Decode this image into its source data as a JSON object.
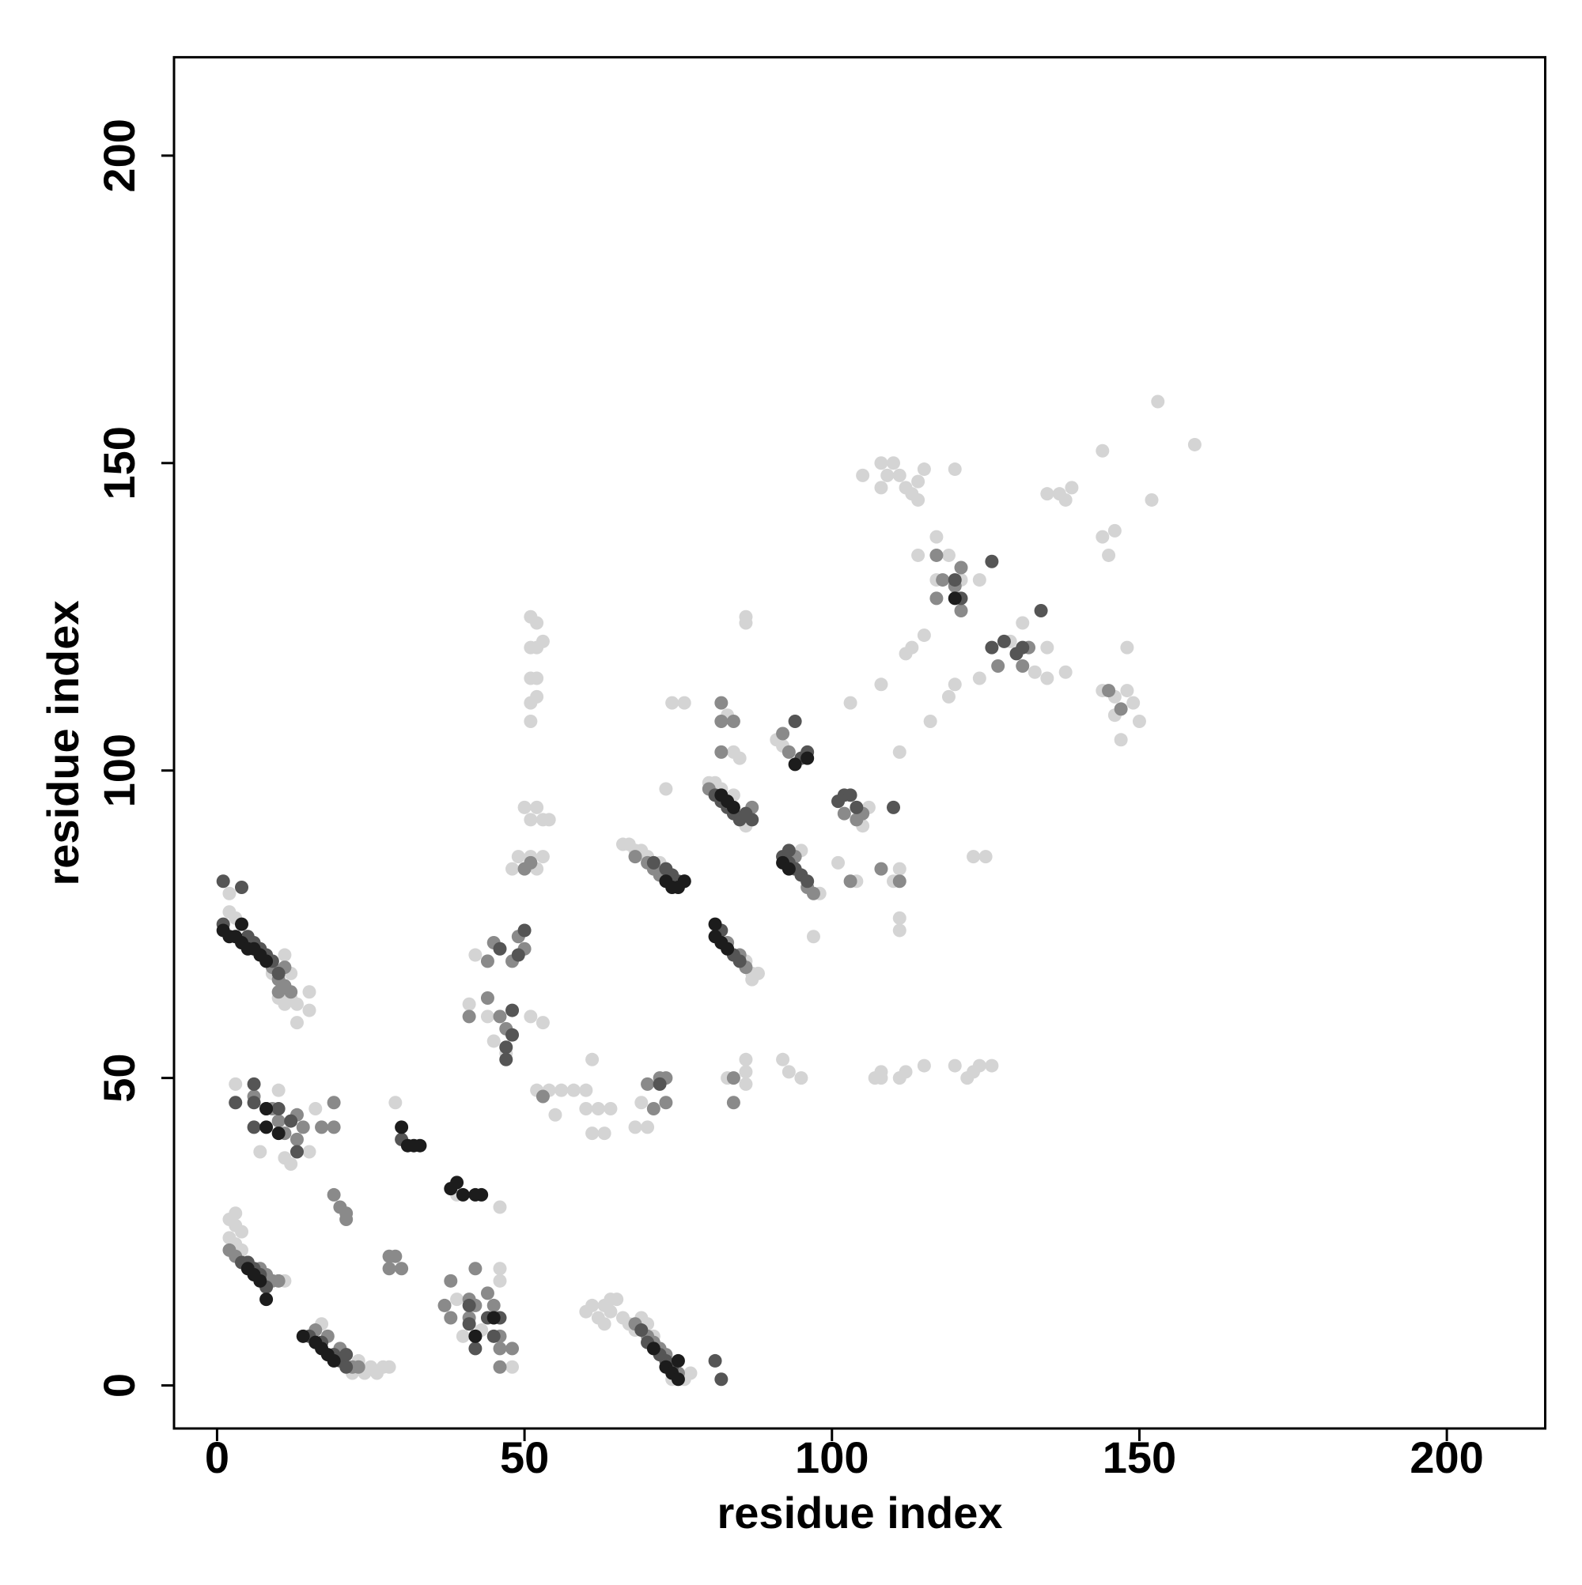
{
  "chart_data": {
    "type": "scatter",
    "x_label": "residue index",
    "y_label": "residue index",
    "xlim": [
      -7,
      216
    ],
    "ylim": [
      -7,
      216
    ],
    "xticks": [
      0,
      50,
      100,
      150,
      200
    ],
    "yticks": [
      0,
      50,
      100,
      150,
      200
    ],
    "grid": false,
    "series": [
      {
        "color": "#d4d4d4",
        "x": [
          2,
          3,
          9,
          11,
          12,
          12,
          13,
          13,
          15,
          15,
          11,
          10,
          2,
          3,
          3,
          2,
          2,
          3,
          4,
          4,
          11,
          17,
          22,
          24,
          25,
          26,
          27,
          28,
          23,
          60,
          61,
          62,
          63,
          64,
          64,
          65,
          66,
          67,
          68,
          69,
          70,
          71,
          76,
          77,
          74,
          63,
          39,
          40,
          43,
          46,
          46,
          48,
          46,
          39,
          29,
          3,
          3,
          7,
          11,
          12,
          15,
          16,
          10,
          41,
          42,
          44,
          45,
          47,
          51,
          53,
          48,
          51,
          52,
          51,
          52,
          51,
          52,
          51,
          52,
          51,
          53,
          50,
          52,
          51,
          53,
          49,
          51,
          53,
          52,
          54,
          52,
          54,
          56,
          58,
          60,
          61,
          60,
          62,
          63,
          61,
          64,
          55,
          68,
          70,
          69,
          66,
          67,
          68,
          69,
          70,
          72,
          73,
          74,
          76,
          80,
          81,
          82,
          84,
          86,
          86,
          87,
          88,
          87,
          83,
          84,
          85,
          86,
          86,
          83,
          86,
          86,
          86,
          95,
          98,
          97,
          91,
          92,
          105,
          106,
          103,
          101,
          104,
          110,
          111,
          111,
          111,
          92,
          93,
          95,
          108,
          108,
          111,
          112,
          115,
          120,
          123,
          124,
          126,
          122,
          107,
          123,
          125,
          111,
          108,
          105,
          108,
          109,
          110,
          111,
          112,
          113,
          114,
          115,
          114,
          108,
          120,
          114,
          117,
          117,
          119,
          121,
          124,
          112,
          113,
          115,
          116,
          119,
          120,
          124,
          129,
          131,
          133,
          135,
          135,
          138,
          135,
          137,
          138,
          139,
          144,
          144,
          145,
          146,
          148,
          144,
          146,
          148,
          149,
          150,
          146,
          147,
          152,
          153,
          159
        ],
        "values": [
          77,
          76,
          67,
          70,
          67,
          63,
          62,
          59,
          61,
          64,
          62,
          63,
          80,
          28,
          26,
          27,
          24,
          23,
          22,
          25,
          17,
          10,
          2,
          2,
          3,
          2,
          3,
          3,
          4,
          12,
          13,
          11,
          10,
          12,
          14,
          14,
          11,
          10,
          9,
          11,
          10,
          8,
          1,
          2,
          1,
          13,
          14,
          8,
          9,
          17,
          19,
          3,
          29,
          31,
          46,
          49,
          46,
          38,
          37,
          36,
          38,
          45,
          48,
          62,
          70,
          60,
          56,
          54,
          60,
          59,
          84,
          125,
          124,
          120,
          120,
          115,
          115,
          111,
          112,
          108,
          121,
          94,
          94,
          92,
          92,
          86,
          86,
          86,
          84,
          92,
          48,
          48,
          48,
          48,
          48,
          53,
          45,
          45,
          41,
          41,
          45,
          44,
          42,
          42,
          46,
          88,
          88,
          87,
          87,
          86,
          85,
          97,
          111,
          111,
          98,
          98,
          97,
          96,
          91,
          69,
          67,
          67,
          66,
          109,
          103,
          102,
          125,
          124,
          50,
          53,
          51,
          49,
          87,
          80,
          73,
          105,
          104,
          91,
          94,
          111,
          85,
          82,
          82,
          84,
          76,
          74,
          53,
          51,
          50,
          51,
          50,
          50,
          51,
          52,
          52,
          51,
          52,
          52,
          50,
          50,
          86,
          86,
          103,
          114,
          148,
          150,
          148,
          150,
          148,
          146,
          145,
          147,
          149,
          144,
          146,
          149,
          135,
          138,
          131,
          135,
          131,
          131,
          119,
          120,
          122,
          108,
          112,
          114,
          115,
          121,
          124,
          116,
          120,
          115,
          116,
          145,
          145,
          144,
          146,
          152,
          138,
          135,
          139,
          120,
          113,
          112,
          113,
          111,
          108,
          109,
          105,
          144,
          160,
          153
        ]
      },
      {
        "color": "#8a8a8a",
        "x": [
          9,
          10,
          11,
          11,
          12,
          10,
          2,
          3,
          5,
          7,
          8,
          9,
          10,
          16,
          18,
          20,
          22,
          23,
          68,
          70,
          71,
          72,
          73,
          75,
          37,
          38,
          38,
          41,
          41,
          42,
          42,
          44,
          45,
          46,
          46,
          48,
          46,
          28,
          29,
          28,
          30,
          19,
          20,
          21,
          21,
          6,
          9,
          10,
          11,
          13,
          14,
          17,
          19,
          19,
          13,
          41,
          44,
          46,
          47,
          48,
          49,
          50,
          44,
          45,
          50,
          51,
          53,
          70,
          72,
          73,
          71,
          73,
          68,
          70,
          71,
          72,
          80,
          87,
          83,
          85,
          86,
          82,
          82,
          84,
          82,
          84,
          84,
          94,
          96,
          97,
          92,
          93,
          102,
          104,
          105,
          103,
          108,
          111,
          145,
          147,
          117,
          118,
          120,
          121,
          117,
          121,
          127,
          131,
          132
        ],
        "values": [
          68,
          66,
          65,
          68,
          64,
          64,
          22,
          21,
          20,
          19,
          18,
          17,
          17,
          9,
          8,
          6,
          3,
          3,
          10,
          8,
          7,
          6,
          5,
          2,
          13,
          17,
          11,
          14,
          11,
          19,
          13,
          15,
          13,
          8,
          6,
          6,
          3,
          21,
          21,
          19,
          19,
          31,
          29,
          28,
          27,
          47,
          45,
          43,
          41,
          44,
          42,
          42,
          42,
          46,
          40,
          60,
          63,
          60,
          58,
          69,
          73,
          71,
          69,
          72,
          84,
          85,
          47,
          49,
          50,
          46,
          45,
          50,
          86,
          85,
          84,
          83,
          97,
          94,
          72,
          70,
          68,
          111,
          108,
          108,
          103,
          46,
          50,
          86,
          81,
          80,
          106,
          103,
          93,
          92,
          93,
          82,
          84,
          82,
          113,
          110,
          128,
          131,
          130,
          126,
          135,
          133,
          117,
          117,
          120
        ]
      },
      {
        "color": "#555555",
        "x": [
          1,
          4,
          1,
          5,
          6,
          7,
          8,
          9,
          10,
          4,
          5,
          6,
          7,
          8,
          15,
          17,
          19,
          20,
          21,
          21,
          69,
          70,
          72,
          73,
          74,
          81,
          82,
          41,
          42,
          44,
          45,
          42,
          46,
          41,
          30,
          3,
          6,
          6,
          8,
          10,
          12,
          13,
          6,
          46,
          47,
          48,
          48,
          47,
          49,
          50,
          72,
          71,
          73,
          74,
          75,
          76,
          81,
          82,
          83,
          84,
          85,
          86,
          87,
          82,
          84,
          85,
          92,
          93,
          93,
          94,
          95,
          96,
          94,
          95,
          96,
          101,
          102,
          103,
          104,
          110,
          120,
          121,
          126,
          126,
          128,
          130,
          131,
          134
        ],
        "values": [
          82,
          81,
          75,
          73,
          72,
          71,
          70,
          69,
          67,
          20,
          20,
          19,
          18,
          16,
          8,
          7,
          5,
          4,
          3,
          5,
          9,
          7,
          5,
          4,
          3,
          4,
          1,
          10,
          8,
          11,
          8,
          6,
          11,
          13,
          40,
          46,
          49,
          46,
          45,
          45,
          43,
          38,
          42,
          71,
          55,
          61,
          57,
          53,
          70,
          74,
          49,
          85,
          84,
          83,
          82,
          82,
          96,
          95,
          94,
          93,
          92,
          93,
          92,
          74,
          70,
          69,
          86,
          87,
          85,
          84,
          83,
          82,
          108,
          102,
          103,
          95,
          96,
          96,
          94,
          94,
          131,
          128,
          134,
          120,
          121,
          119,
          120,
          126
        ]
      },
      {
        "color": "#1c1c1c",
        "x": [
          1,
          2,
          3,
          4,
          4,
          5,
          6,
          7,
          8,
          5,
          6,
          7,
          8,
          14,
          16,
          17,
          18,
          19,
          71,
          73,
          74,
          75,
          75,
          42,
          45,
          38,
          39,
          40,
          42,
          43,
          30,
          31,
          32,
          33,
          8,
          10,
          8,
          73,
          74,
          75,
          76,
          82,
          83,
          84,
          81,
          81,
          82,
          83,
          92,
          93,
          94,
          96,
          120
        ],
        "values": [
          74,
          73,
          73,
          75,
          72,
          71,
          71,
          70,
          69,
          19,
          18,
          17,
          14,
          8,
          7,
          6,
          5,
          4,
          6,
          3,
          2,
          4,
          1,
          8,
          11,
          32,
          33,
          31,
          31,
          31,
          42,
          39,
          39,
          39,
          42,
          41,
          45,
          82,
          81,
          81,
          82,
          96,
          95,
          94,
          75,
          73,
          72,
          71,
          85,
          84,
          101,
          102,
          128
        ]
      }
    ]
  }
}
